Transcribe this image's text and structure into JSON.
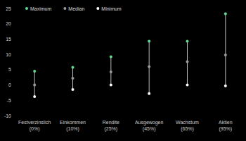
{
  "chart_data": {
    "type": "range_dot",
    "categories": [
      "Festverzinslich (0%)",
      "Einkommen (10%)",
      "Rendite (25%)",
      "Ausgewogen (45%)",
      "Wachstum (65%)",
      "Aktien (95%)"
    ],
    "series": [
      {
        "name": "Maximum",
        "color": "#5fdc8f",
        "marker": "circle",
        "values": [
          4.5,
          5.8,
          9.2,
          14.3,
          14.3,
          23.3
        ]
      },
      {
        "name": "Median",
        "color": "#9a9a9a",
        "marker": "circle",
        "values": [
          0,
          2.2,
          4.3,
          6.0,
          7.6,
          9.8
        ]
      },
      {
        "name": "Minimum",
        "color": "#ffffff",
        "marker": "circle",
        "values": [
          -3.8,
          -1.5,
          0,
          -2.8,
          0,
          -0.3
        ]
      }
    ],
    "ylim": [
      -10,
      25
    ],
    "yticks": [
      -10,
      -5,
      0,
      5,
      10,
      15,
      20,
      25
    ],
    "grid": false,
    "legend": "top"
  }
}
